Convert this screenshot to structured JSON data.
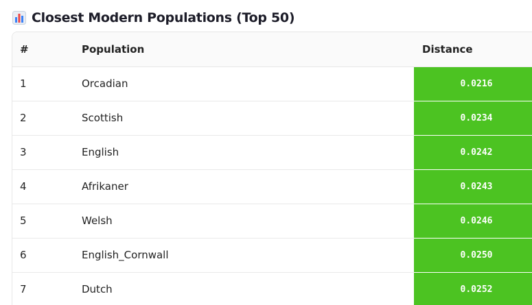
{
  "header": {
    "title": "Closest Modern Populations (Top 50)"
  },
  "table": {
    "columns": [
      "#",
      "Population",
      "Distance"
    ],
    "rows": [
      [
        1,
        "Orcadian",
        "0.0216"
      ],
      [
        2,
        "Scottish",
        "0.0234"
      ],
      [
        3,
        "English",
        "0.0242"
      ],
      [
        4,
        "Afrikaner",
        "0.0243"
      ],
      [
        5,
        "Welsh",
        "0.0246"
      ],
      [
        6,
        "English_Cornwall",
        "0.0250"
      ],
      [
        7,
        "Dutch",
        "0.0252"
      ]
    ]
  }
}
